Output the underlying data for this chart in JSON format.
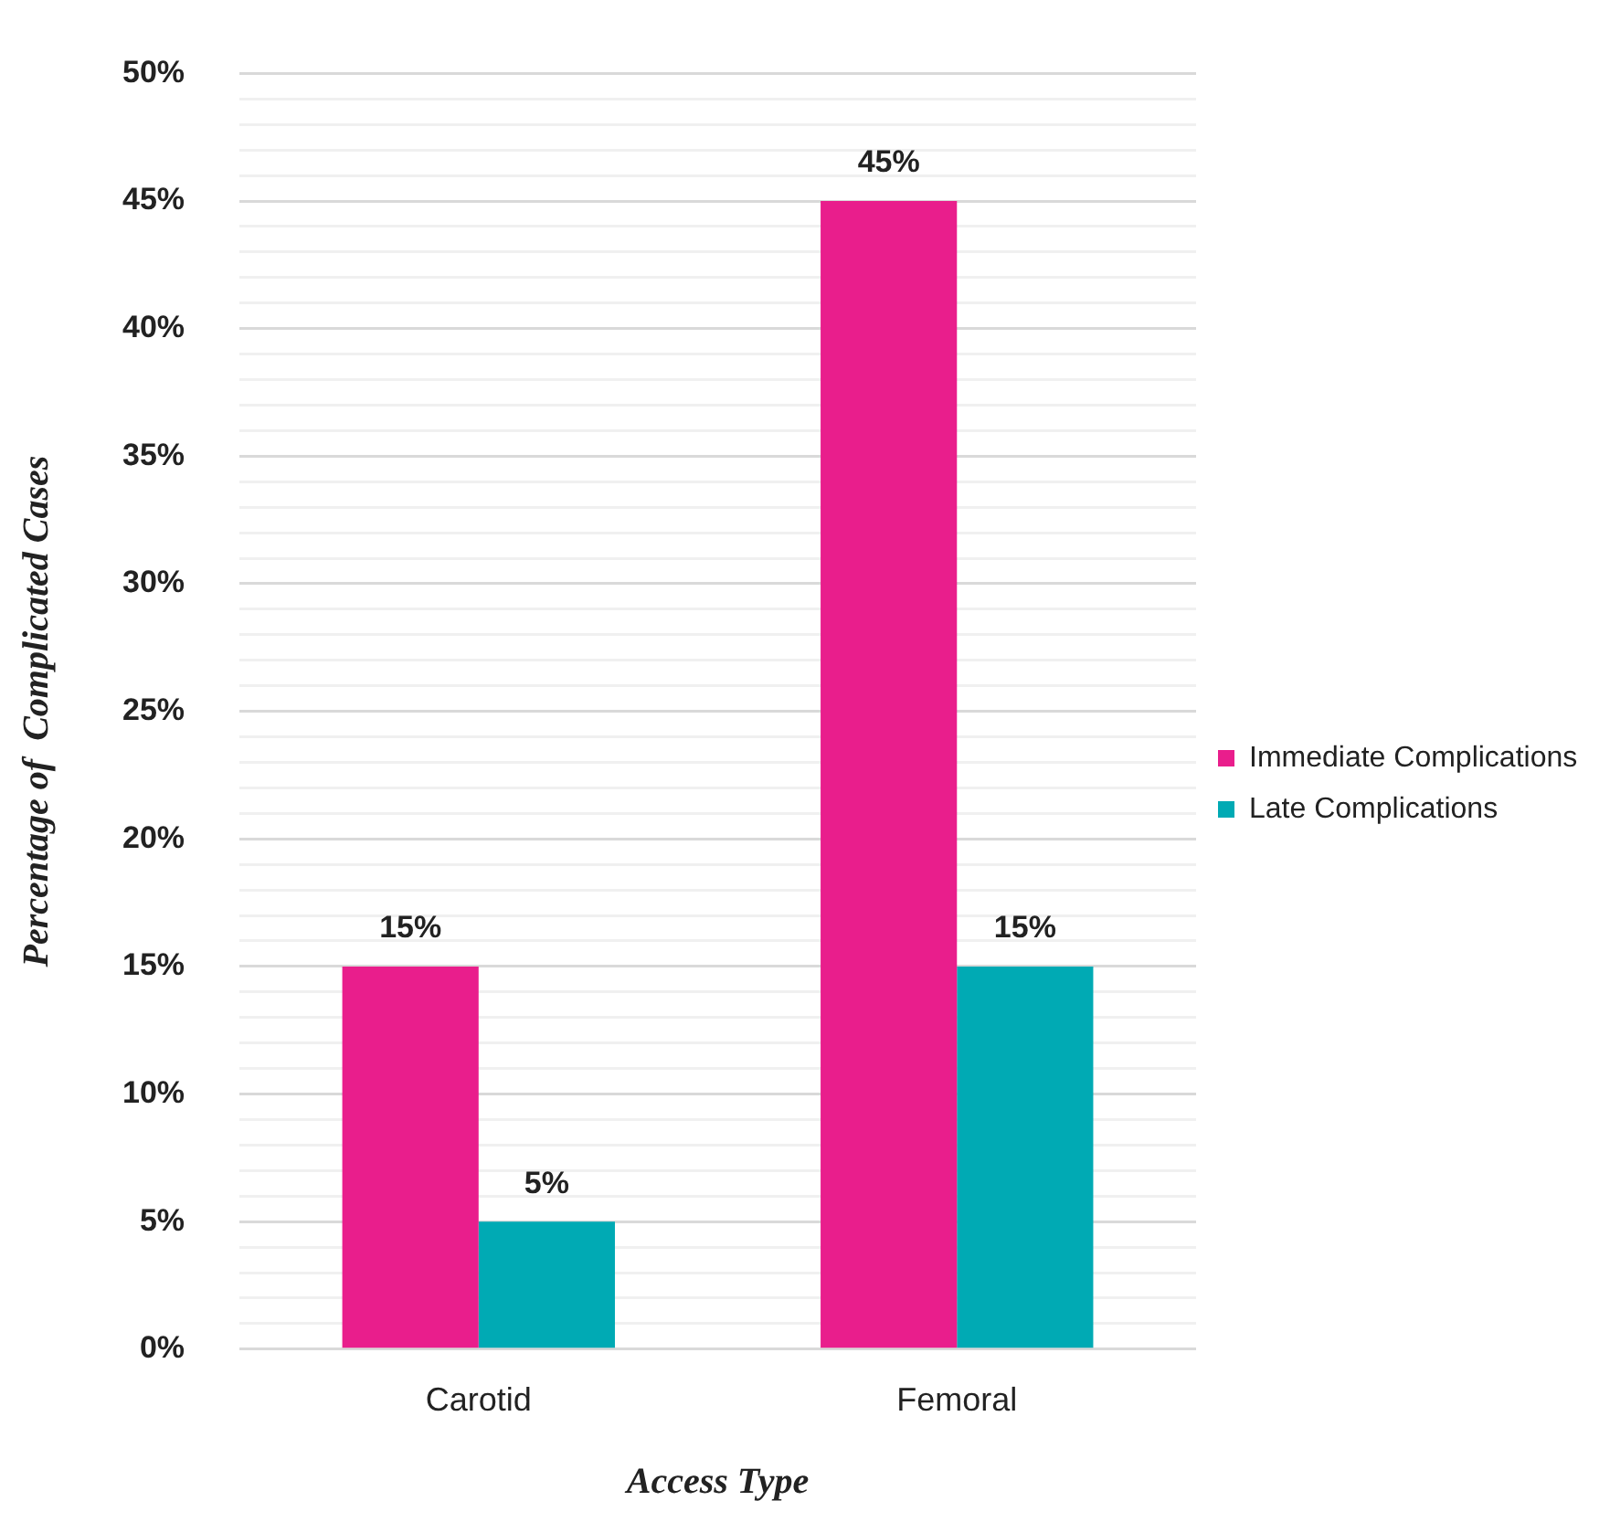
{
  "chart_data": {
    "type": "bar",
    "xlabel": "Access Type",
    "ylabel": "Percentage of  Complicated Cases",
    "categories": [
      "Carotid",
      "Femoral"
    ],
    "series": [
      {
        "name": "Immediate Complications",
        "color": "#e91e8c",
        "values": [
          15,
          45
        ],
        "value_labels": [
          "15%",
          "45%"
        ]
      },
      {
        "name": "Late Complications",
        "color": "#00aab4",
        "values": [
          5,
          15
        ],
        "value_labels": [
          "5%",
          "15%"
        ]
      }
    ],
    "ylim": [
      0,
      50
    ],
    "yticks": [
      {
        "value": 0,
        "label": "0%"
      },
      {
        "value": 1,
        "label": null
      },
      {
        "value": 2,
        "label": null
      },
      {
        "value": 3,
        "label": null
      },
      {
        "value": 4,
        "label": null
      },
      {
        "value": 5,
        "label": "5%"
      },
      {
        "value": 6,
        "label": null
      },
      {
        "value": 7,
        "label": null
      },
      {
        "value": 8,
        "label": null
      },
      {
        "value": 9,
        "label": null
      },
      {
        "value": 10,
        "label": "10%"
      },
      {
        "value": 11,
        "label": null
      },
      {
        "value": 12,
        "label": null
      },
      {
        "value": 13,
        "label": null
      },
      {
        "value": 14,
        "label": null
      },
      {
        "value": 15,
        "label": "15%"
      },
      {
        "value": 16,
        "label": null
      },
      {
        "value": 17,
        "label": null
      },
      {
        "value": 18,
        "label": null
      },
      {
        "value": 19,
        "label": null
      },
      {
        "value": 20,
        "label": "20%"
      },
      {
        "value": 21,
        "label": null
      },
      {
        "value": 22,
        "label": null
      },
      {
        "value": 23,
        "label": null
      },
      {
        "value": 24,
        "label": null
      },
      {
        "value": 25,
        "label": "25%"
      },
      {
        "value": 26,
        "label": null
      },
      {
        "value": 27,
        "label": null
      },
      {
        "value": 28,
        "label": null
      },
      {
        "value": 29,
        "label": null
      },
      {
        "value": 30,
        "label": "30%"
      },
      {
        "value": 31,
        "label": null
      },
      {
        "value": 32,
        "label": null
      },
      {
        "value": 33,
        "label": null
      },
      {
        "value": 34,
        "label": null
      },
      {
        "value": 35,
        "label": "35%"
      },
      {
        "value": 36,
        "label": null
      },
      {
        "value": 37,
        "label": null
      },
      {
        "value": 38,
        "label": null
      },
      {
        "value": 39,
        "label": null
      },
      {
        "value": 40,
        "label": "40%"
      },
      {
        "value": 41,
        "label": null
      },
      {
        "value": 42,
        "label": null
      },
      {
        "value": 43,
        "label": null
      },
      {
        "value": 44,
        "label": null
      },
      {
        "value": 45,
        "label": "45%"
      },
      {
        "value": 46,
        "label": null
      },
      {
        "value": 47,
        "label": null
      },
      {
        "value": 48,
        "label": null
      },
      {
        "value": 49,
        "label": null
      },
      {
        "value": 50,
        "label": "50%"
      }
    ],
    "grid": "y",
    "legend": "right"
  }
}
